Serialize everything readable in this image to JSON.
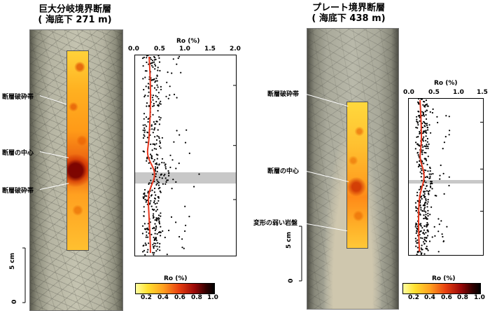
{
  "left": {
    "title_line1": "巨大分岐境界断層",
    "title_line2": "( 海底下 271 m)",
    "labels": {
      "upper": "断層破砕帯",
      "center": "断層の中心",
      "lower": "断層破砕帯"
    },
    "scale": {
      "five": "5 cm",
      "zero": "0"
    },
    "plot": {
      "axis_title": "Ro (%)",
      "ticks": [
        "0.0",
        "0.5",
        "1.0",
        "1.5",
        "2.0"
      ],
      "xlim": [
        0,
        2.0
      ]
    },
    "colorbar": {
      "title": "Ro (%)",
      "ticks": [
        "0.2",
        "0.4",
        "0.6",
        "0.8",
        "1.0"
      ]
    }
  },
  "right": {
    "title_line1": "プレート境界断層",
    "title_line2": "( 海底下 438 m)",
    "labels": {
      "upper": "断層破砕帯",
      "center": "断層の中心",
      "lower": "変形の弱い岩盤"
    },
    "scale": {
      "five": "5 cm",
      "zero": "0"
    },
    "plot": {
      "axis_title": "Ro (%)",
      "ticks": [
        "0.0",
        "0.5",
        "1.0",
        "1.5"
      ],
      "xlim": [
        0,
        1.5
      ]
    },
    "colorbar": {
      "title": "Ro (%)",
      "ticks": [
        "0.2",
        "0.4",
        "0.6",
        "0.8",
        "1.0"
      ]
    }
  },
  "colors": {
    "trend": "#e8371d",
    "band": "#c8c8c8",
    "points": "#000000"
  }
}
